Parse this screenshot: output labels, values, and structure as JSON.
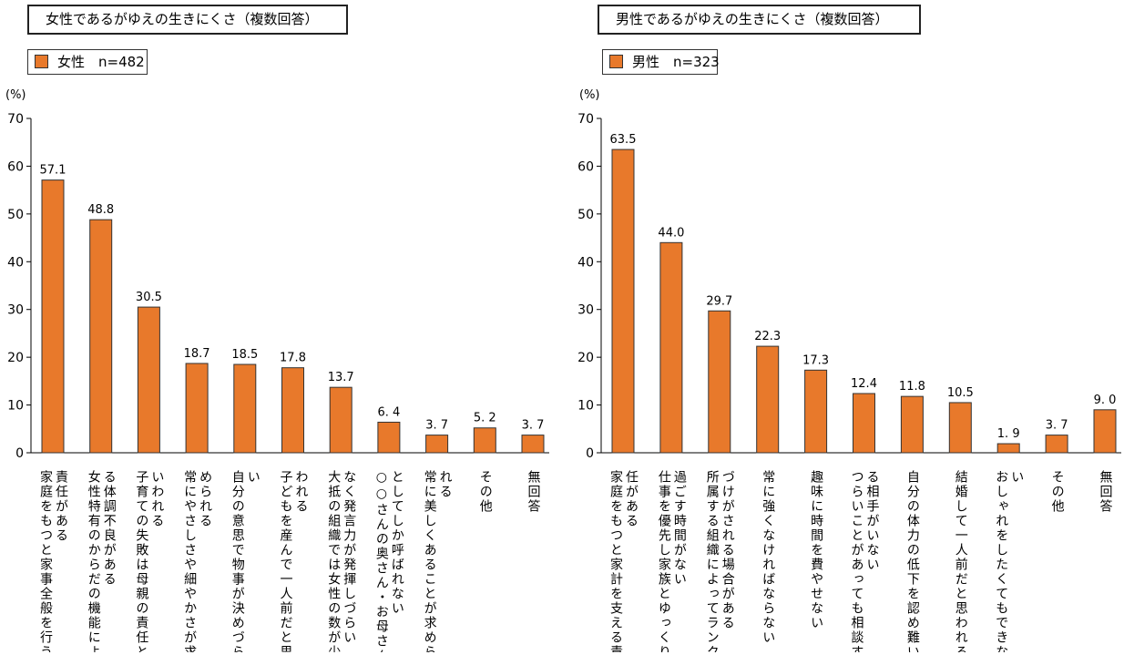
{
  "chart_data": [
    {
      "type": "bar",
      "title": "女性であるがゆえの生きにくさ（複数回答）",
      "legend": "女性　n=482",
      "ylabel": "(%)",
      "ylim": [
        0,
        70
      ],
      "yticks": [
        0,
        10,
        20,
        30,
        40,
        50,
        60,
        70
      ],
      "bar_color": "#e8792b",
      "categories": [
        [
          "責任がある",
          "家庭をもつと家事全般を行う"
        ],
        [
          "る体調不良がある",
          "女性特有のからだの機能によ"
        ],
        [
          "いわれる",
          "子育ての失敗は母親の責任と"
        ],
        [
          "められる",
          "常にやさしさや細やかさが求"
        ],
        [
          "い",
          "自分の意思で物事が決めづら"
        ],
        [
          "われる",
          "子どもを産んで一人前だと思"
        ],
        [
          "なく発言力が発揮しづらい",
          "大抵の組織では女性の数が少"
        ],
        [
          "としてしか呼ばれない",
          "○○さんの奥さん・お母さん"
        ],
        [
          "れる",
          "常に美しくあることが求めら"
        ],
        [
          "その他"
        ],
        [
          "無回答"
        ]
      ],
      "values": [
        57.1,
        48.8,
        30.5,
        18.7,
        18.5,
        17.8,
        13.7,
        6.4,
        3.7,
        5.2,
        3.7
      ],
      "value_labels": [
        "57.1",
        "48.8",
        "30.5",
        "18.7",
        "18.5",
        "17.8",
        "13.7",
        "6. 4",
        "3. 7",
        "5. 2",
        "3. 7"
      ]
    },
    {
      "type": "bar",
      "title": "男性であるがゆえの生きにくさ（複数回答）",
      "legend": "男性　n=323",
      "ylabel": "(%)",
      "ylim": [
        0,
        70
      ],
      "yticks": [
        0,
        10,
        20,
        30,
        40,
        50,
        60,
        70
      ],
      "bar_color": "#e8792b",
      "categories": [
        [
          "任がある",
          "家庭をもつと家計を支える責"
        ],
        [
          "過ごす時間がない",
          "仕事を優先し家族とゆっくり"
        ],
        [
          "づけがされる場合がある",
          "所属する組織によってランク"
        ],
        [
          "常に強くなければならない"
        ],
        [
          "趣味に時間を費やせない"
        ],
        [
          "る相手がいない",
          "つらいことがあっても相談す"
        ],
        [
          "自分の体力の低下を認め難い"
        ],
        [
          "結婚して一人前だと思われる"
        ],
        [
          "い",
          "おしゃれをしたくてもできな"
        ],
        [
          "その他"
        ],
        [
          "無回答"
        ]
      ],
      "values": [
        63.5,
        44.0,
        29.7,
        22.3,
        17.3,
        12.4,
        11.8,
        10.5,
        1.9,
        3.7,
        9.0
      ],
      "value_labels": [
        "63.5",
        "44.0",
        "29.7",
        "22.3",
        "17.3",
        "12.4",
        "11.8",
        "10.5",
        "1. 9",
        "3. 7",
        "9. 0"
      ]
    }
  ]
}
